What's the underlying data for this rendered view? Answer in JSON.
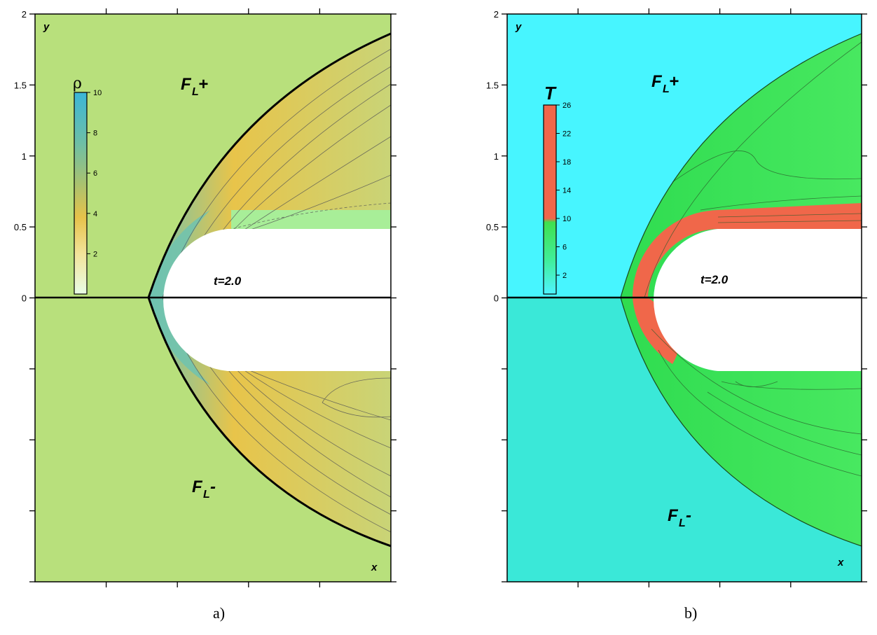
{
  "panels": [
    {
      "id": "a",
      "caption": "a)",
      "axis_var_y": "y",
      "axis_var_x": "x",
      "y_ticks": [
        "2",
        "1.5",
        "1",
        "0.5",
        "0"
      ],
      "region_upper": {
        "main": "F",
        "sub": "L",
        "sup": "+"
      },
      "region_lower": {
        "main": "F",
        "sub": "L",
        "sup": "-"
      },
      "time_label": "t=2.0",
      "colorbar": {
        "title": "ρ",
        "ticks": [
          "10",
          "8",
          "6",
          "4",
          "2"
        ],
        "colors": [
          "#3bb6d8",
          "#7cc39a",
          "#d4c04f",
          "#e9c64a",
          "#f0df8a",
          "#e8fbe0"
        ]
      },
      "colors": {
        "background": "#b8e07c",
        "shock": "#e8c44a",
        "stagnation": "#6fc3a8",
        "wake": "#a8ee98",
        "body": "#ffffff"
      }
    },
    {
      "id": "b",
      "caption": "b)",
      "axis_var_y": "y",
      "axis_var_x": "x",
      "y_ticks": [
        "2",
        "1.5",
        "1",
        "0.5",
        "0"
      ],
      "region_upper": {
        "main": "F",
        "sub": "L",
        "sup": "+"
      },
      "region_lower": {
        "main": "F",
        "sub": "L",
        "sup": "-"
      },
      "time_label": "t=2.0",
      "colorbar": {
        "title": "T",
        "ticks": [
          "26",
          "22",
          "18",
          "14",
          "10",
          "6",
          "2"
        ],
        "colors": [
          "#f0674a",
          "#f0674a",
          "#3fe04e",
          "#3fe04e",
          "#49f0ff"
        ]
      },
      "colors": {
        "background_upper": "#47f5ff",
        "background_lower": "#3ae8d8",
        "shock": "#3ee84c",
        "hot": "#f0674a",
        "body": "#ffffff"
      }
    }
  ]
}
